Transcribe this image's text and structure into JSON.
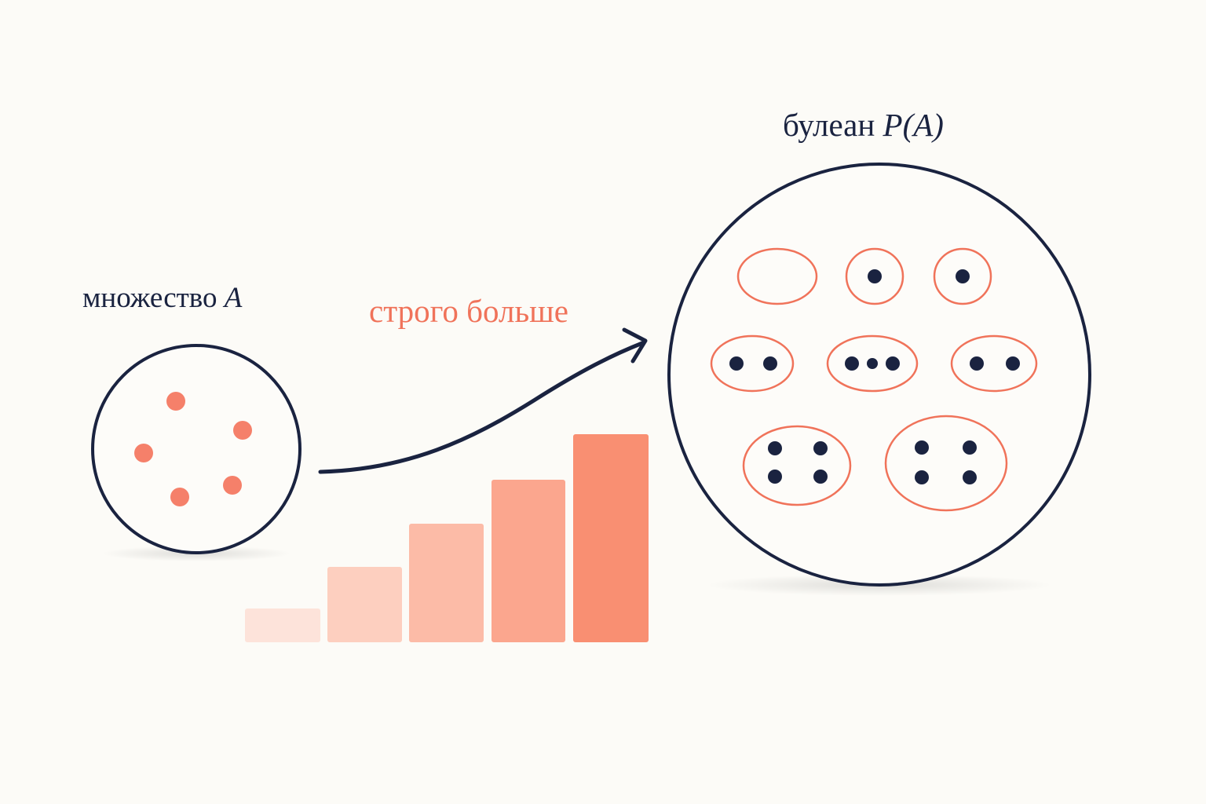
{
  "set_label": {
    "word": "множество",
    "symbol": "A"
  },
  "arrow_label": "строго больше",
  "powerset_label": {
    "word": "булеан",
    "symbol": "P(A)"
  }
}
